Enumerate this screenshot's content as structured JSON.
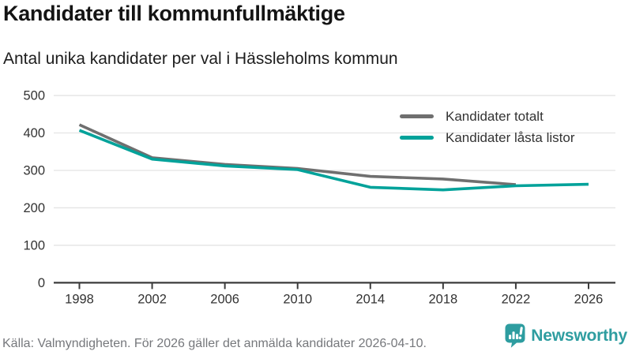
{
  "header": {
    "title": "Kandidater till kommunfullmäktige",
    "subtitle": "Antal unika kandidater per val i Hässleholms kommun"
  },
  "chart_data": {
    "type": "line",
    "categories": [
      1998,
      2002,
      2006,
      2010,
      2014,
      2018,
      2022,
      2026
    ],
    "series": [
      {
        "name": "Kandidater totalt",
        "color": "#6f6f6f",
        "values": [
          422,
          334,
          316,
          305,
          284,
          277,
          262,
          null
        ]
      },
      {
        "name": "Kandidater låsta listor",
        "color": "#00a29a",
        "values": [
          407,
          330,
          312,
          302,
          255,
          248,
          259,
          263
        ]
      }
    ],
    "xlabel": "",
    "ylabel": "",
    "ylim": [
      0,
      500
    ],
    "yticks": [
      0,
      100,
      200,
      300,
      400,
      500
    ],
    "grid": "horizontal",
    "legend_position": "top-right",
    "axis_color": "#3c3c3c",
    "grid_color": "#e4e4e4",
    "tick_label_color": "#333333"
  },
  "footer": {
    "source": "Källa: Valmyndigheten. För 2026 gäller det anmälda kandidater 2026-04-10.",
    "brand": "Newsworthy",
    "brand_color": "#2e9da0"
  }
}
